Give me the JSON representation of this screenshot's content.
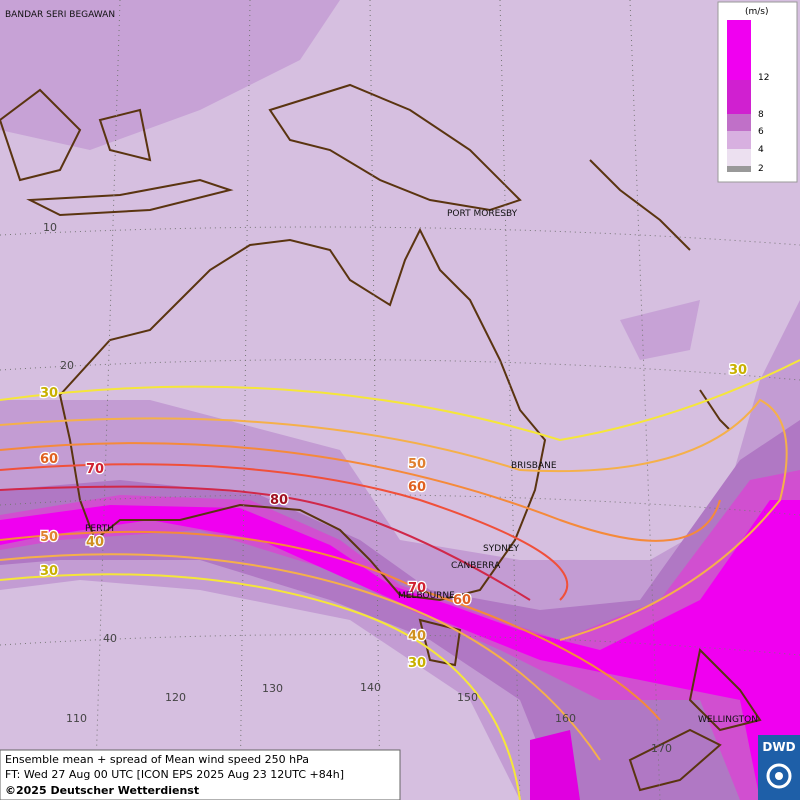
{
  "cities": [
    "BANDAR SERI BEGAWAN",
    "PORT MORESBY",
    "BRISBANE",
    "SYDNEY",
    "CANBERRA",
    "MELBOURNE",
    "PERTH",
    "WELLINGTON"
  ],
  "latitude_labels": [
    10,
    20,
    40
  ],
  "longitude_labels": [
    110,
    120,
    130,
    140,
    150,
    160,
    170
  ],
  "contour_labels": [
    30,
    60,
    70,
    50,
    40,
    30,
    80,
    50,
    60,
    70,
    60,
    40,
    30,
    30
  ],
  "legend": {
    "unit": "(m/s)",
    "ticks": [
      2,
      4,
      6,
      8,
      12
    ]
  },
  "footer": {
    "title": "Ensemble mean + spread of Mean wind speed 250 hPa",
    "forecast": "FT: Wed 27 Aug 00 UTC [ICON EPS 2025 Aug 23 12UTC +84h]",
    "copyright": "©2025 Deutscher Wetterdienst",
    "logo": "DWD"
  }
}
